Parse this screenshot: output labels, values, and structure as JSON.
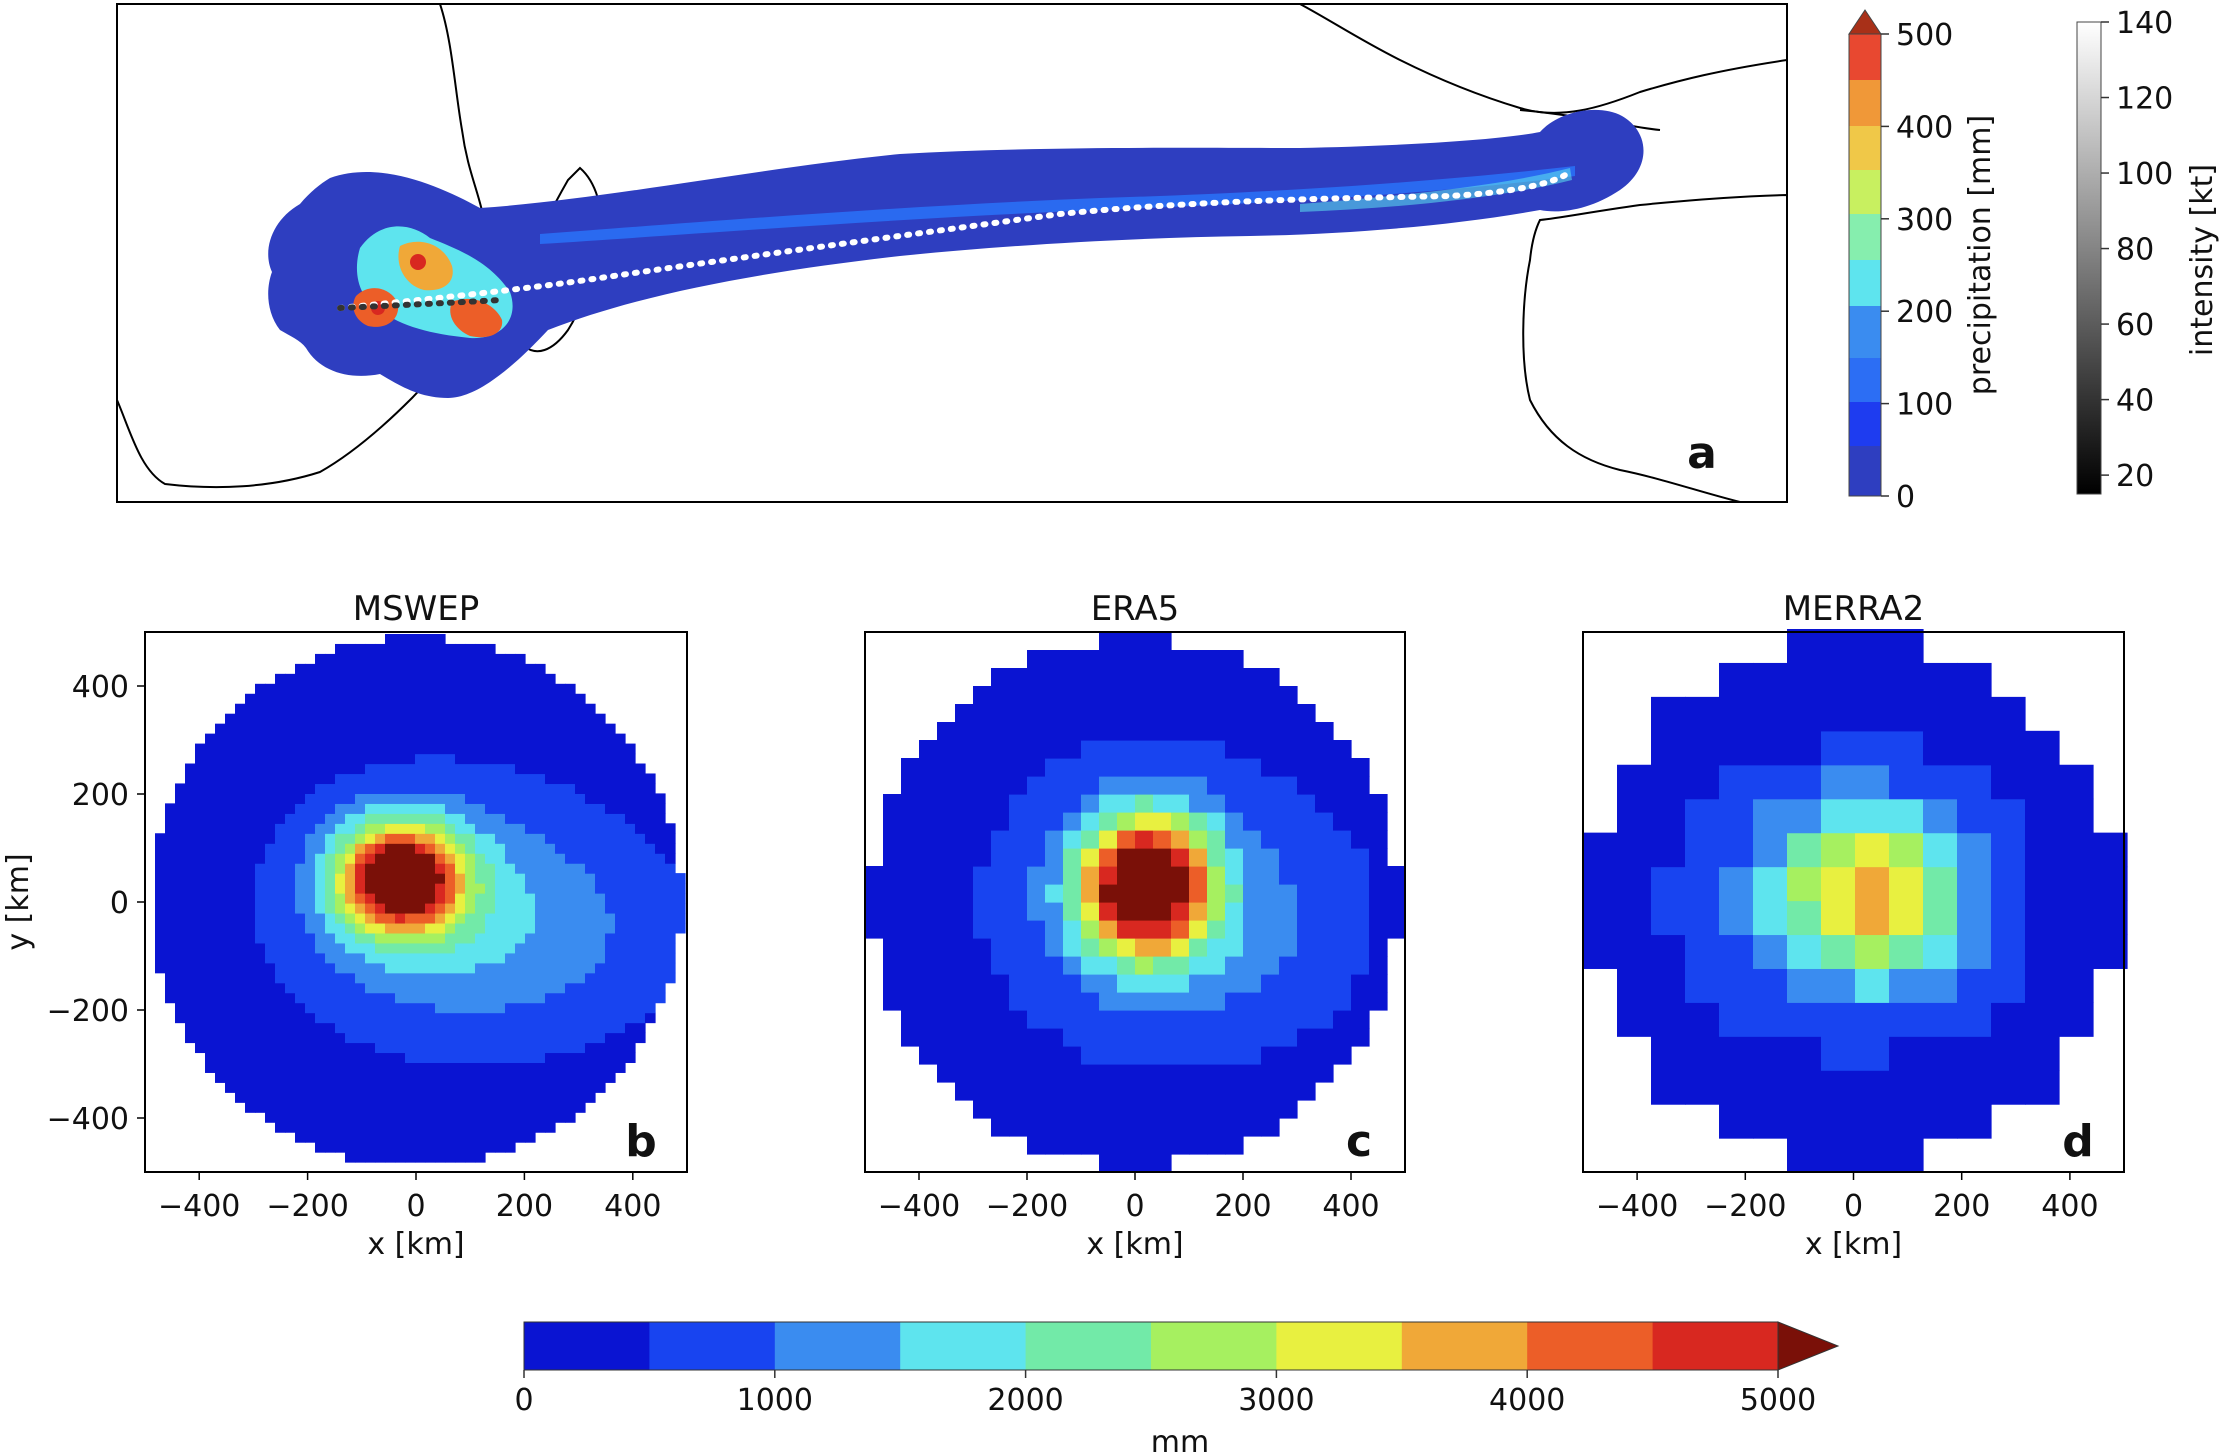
{
  "panel_a": {
    "label": "a",
    "precip_colorbar": {
      "label": "precipitation [mm]",
      "ticks": [
        "0",
        "100",
        "200",
        "300",
        "400",
        "500"
      ],
      "max": 500,
      "extend": "max"
    },
    "intensity_colorbar": {
      "label": "intensity [kt]",
      "ticks": [
        "20",
        "40",
        "60",
        "80",
        "100",
        "120",
        "140"
      ],
      "min": 15,
      "max": 140
    }
  },
  "bottom_colorbar": {
    "label": "mm",
    "ticks": [
      "0",
      "1000",
      "2000",
      "3000",
      "4000",
      "5000"
    ],
    "levels": [
      0,
      500,
      1000,
      1500,
      2000,
      2500,
      3000,
      3500,
      4000,
      4500,
      5000
    ],
    "colors": [
      "#0a14d2",
      "#1844f0",
      "#3a8cf0",
      "#5ee4ee",
      "#72eaa8",
      "#a6f060",
      "#e8f040",
      "#f0a838",
      "#ec5e28",
      "#d82820",
      "#7a1008"
    ],
    "extend": "max"
  },
  "chart_data": [
    {
      "type": "heatmap",
      "panel_label": "b",
      "title": "MSWEP",
      "xlabel": "x [km]",
      "ylabel": "y [km]",
      "xlim": [
        -500,
        500
      ],
      "ylim": [
        -500,
        500
      ],
      "xticks": [
        "−400",
        "−200",
        "0",
        "200",
        "400"
      ],
      "yticks": [
        "400",
        "200",
        "0",
        "−200",
        "−400"
      ],
      "disk_radius_km": 490,
      "peak": {
        "x": -30,
        "y": 45,
        "value": 5000
      }
    },
    {
      "type": "heatmap",
      "panel_label": "c",
      "title": "ERA5",
      "xlabel": "x [km]",
      "ylabel": "",
      "xlim": [
        -500,
        500
      ],
      "ylim": [
        -500,
        500
      ],
      "xticks": [
        "−400",
        "−200",
        "0",
        "200",
        "400"
      ],
      "disk_radius_km": 490,
      "peak": {
        "x": 20,
        "y": 30,
        "value": 5000
      }
    },
    {
      "type": "heatmap",
      "panel_label": "d",
      "title": "MERRA2",
      "xlabel": "x [km]",
      "ylabel": "",
      "xlim": [
        -500,
        500
      ],
      "ylim": [
        -500,
        500
      ],
      "xticks": [
        "−400",
        "−200",
        "0",
        "200",
        "400"
      ],
      "disk_radius_km": 490,
      "peak": {
        "x": 30,
        "y": 20,
        "value": 3700
      }
    }
  ]
}
